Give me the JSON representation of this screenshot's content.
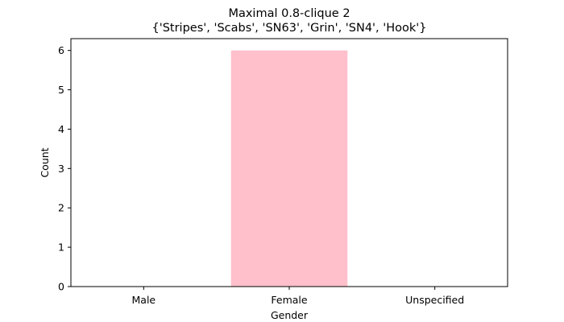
{
  "chart_data": {
    "type": "bar",
    "title": "Maximal 0.8-clique 2",
    "subtitle": "{'Stripes', 'Scabs', 'SN63', 'Grin', 'SN4', 'Hook'}",
    "xlabel": "Gender",
    "ylabel": "Count",
    "categories": [
      "Male",
      "Female",
      "Unspecified"
    ],
    "values": [
      0,
      6,
      0
    ],
    "ylim": [
      0,
      6.3
    ],
    "yticks": [
      "0",
      "1",
      "2",
      "3",
      "4",
      "5",
      "6"
    ],
    "bar_color": "#ffc0cb",
    "grid": false,
    "legend": "none"
  }
}
